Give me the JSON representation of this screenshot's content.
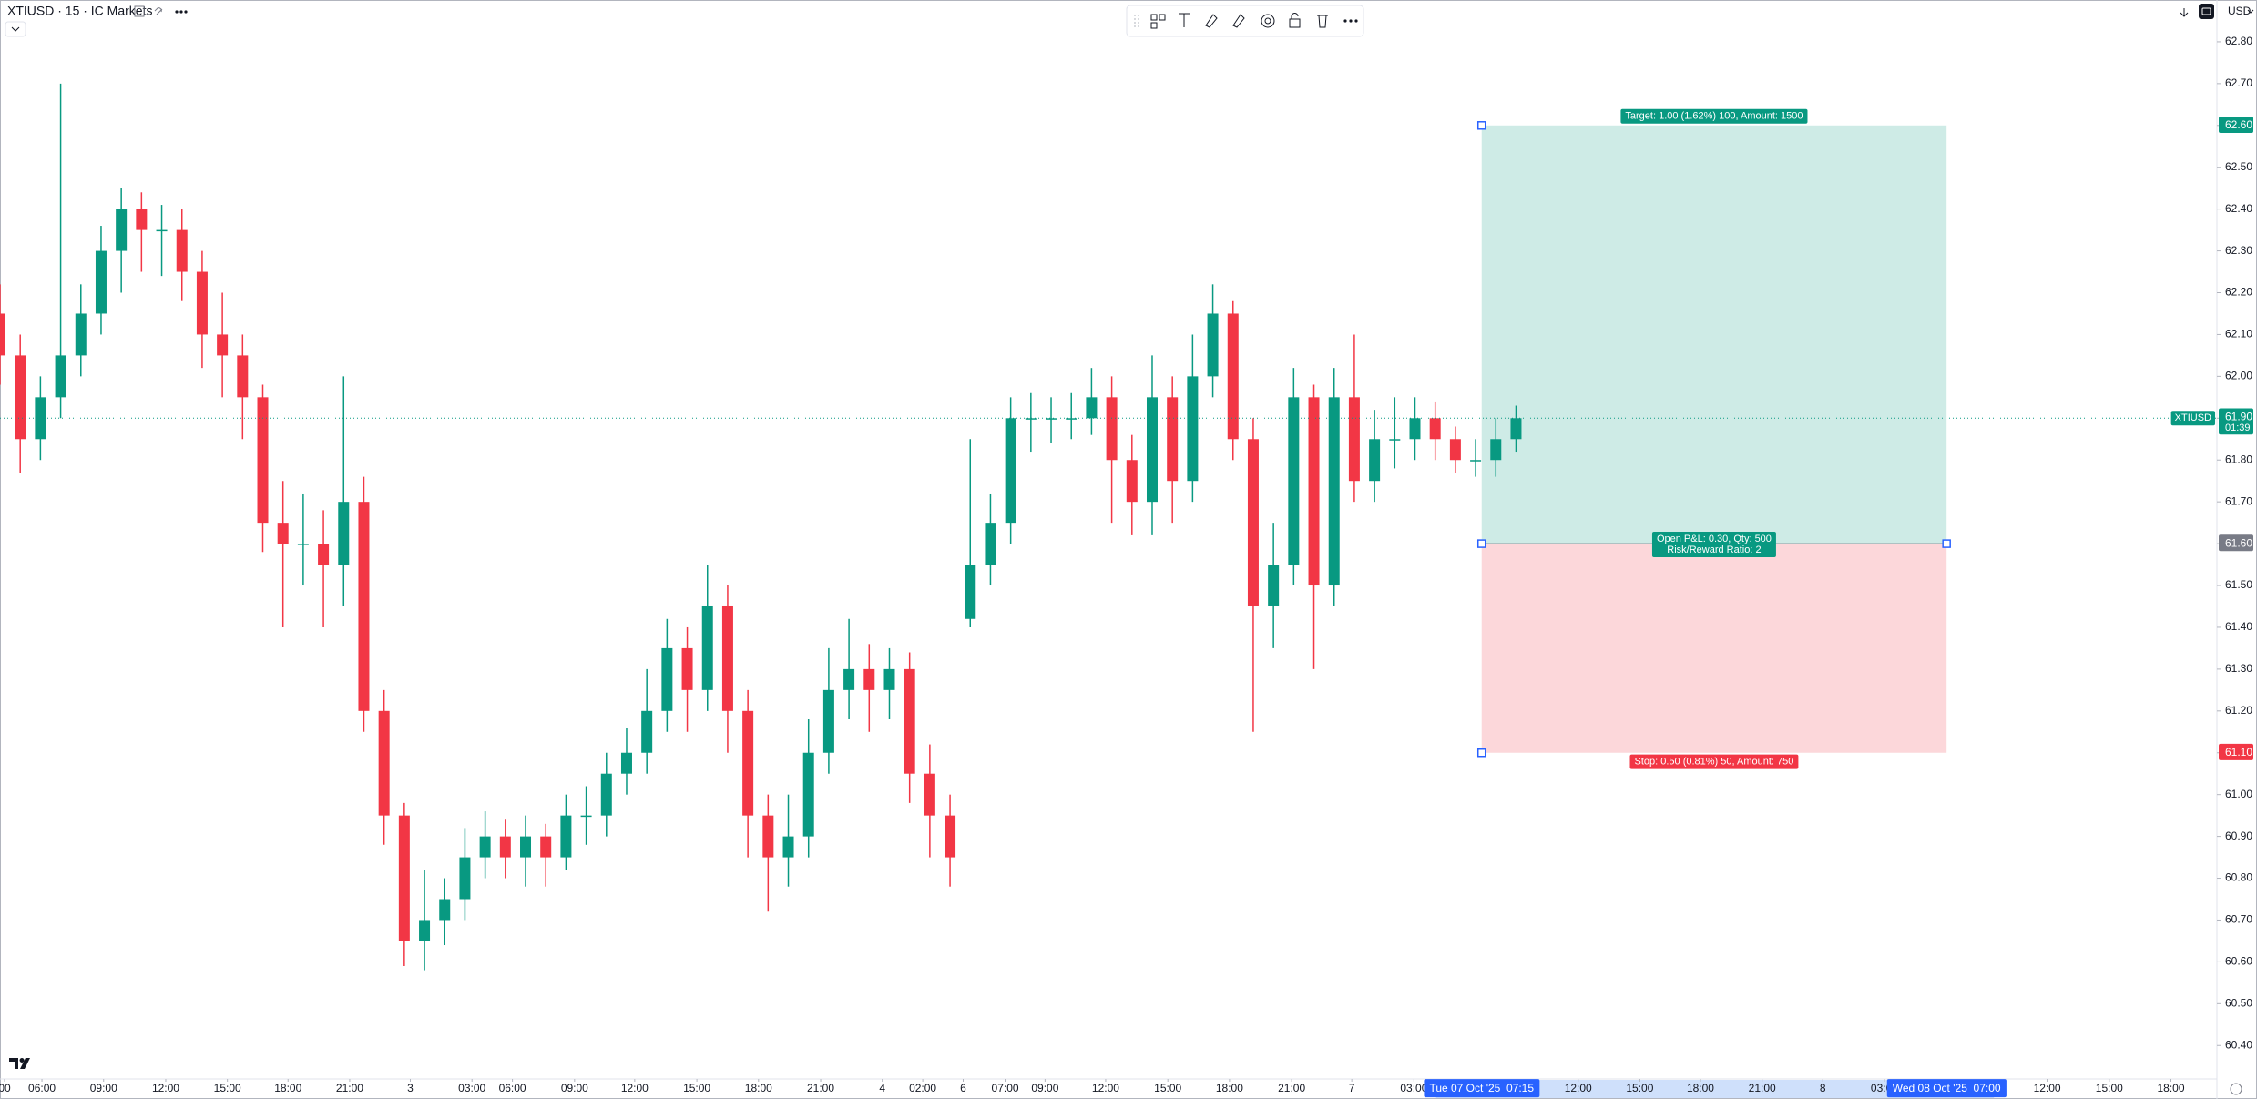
{
  "header": {
    "symbol_title": "XTIUSD · 15 · IC Markets",
    "currency": "USD"
  },
  "chart_data": {
    "type": "candlestick",
    "x": [
      0,
      4,
      8,
      12,
      16,
      20,
      24,
      28,
      32,
      36,
      40,
      44,
      48,
      52,
      56,
      60,
      64,
      68,
      72,
      76,
      80,
      84,
      88,
      92,
      96,
      100,
      104,
      108,
      112,
      116,
      120,
      124,
      128,
      132,
      136,
      140,
      144,
      148,
      152,
      156,
      160,
      164,
      168,
      172,
      176,
      180,
      184,
      188,
      192,
      196,
      200,
      204,
      208,
      212,
      216,
      220,
      224,
      228,
      232,
      236,
      240,
      244,
      248,
      252,
      256,
      260,
      264,
      268,
      272,
      276,
      280,
      284,
      288,
      292,
      296,
      300
    ],
    "open": [
      62.15,
      62.05,
      61.85,
      61.95,
      62.05,
      62.15,
      62.3,
      62.4,
      62.35,
      62.35,
      62.25,
      62.1,
      62.05,
      61.95,
      61.65,
      61.6,
      61.6,
      61.55,
      61.7,
      61.2,
      60.95,
      60.65,
      60.7,
      60.75,
      60.85,
      60.9,
      60.85,
      60.9,
      60.85,
      60.95,
      60.95,
      61.05,
      61.1,
      61.2,
      61.35,
      61.25,
      61.45,
      61.2,
      60.95,
      60.85,
      60.9,
      61.1,
      61.25,
      61.3,
      61.25,
      61.3,
      61.05,
      60.95,
      61.42,
      61.55,
      61.65,
      61.9,
      61.9,
      61.9,
      61.9,
      61.95,
      61.8,
      61.7,
      61.95,
      61.75,
      62.0,
      62.15,
      61.85,
      61.45,
      61.55,
      61.95,
      61.5,
      61.95,
      61.75,
      61.85,
      61.85,
      61.9,
      61.85,
      61.8,
      61.8,
      61.85
    ],
    "high": [
      62.22,
      62.1,
      62.0,
      62.7,
      62.22,
      62.36,
      62.45,
      62.44,
      62.41,
      62.4,
      62.3,
      62.2,
      62.1,
      61.98,
      61.75,
      61.72,
      61.68,
      62.0,
      61.76,
      61.25,
      60.98,
      60.82,
      60.8,
      60.92,
      60.96,
      60.94,
      60.95,
      60.93,
      61.0,
      61.02,
      61.1,
      61.16,
      61.3,
      61.42,
      61.4,
      61.55,
      61.5,
      61.25,
      61.0,
      61.0,
      61.18,
      61.35,
      61.42,
      61.36,
      61.35,
      61.34,
      61.12,
      61.0,
      61.85,
      61.72,
      61.95,
      61.96,
      61.95,
      61.96,
      62.02,
      62.0,
      61.86,
      62.05,
      62.0,
      62.1,
      62.22,
      62.18,
      61.9,
      61.65,
      62.02,
      61.98,
      62.02,
      62.1,
      61.92,
      61.95,
      61.95,
      61.94,
      61.88,
      61.85,
      61.9,
      61.93
    ],
    "low": [
      61.98,
      61.77,
      61.8,
      61.9,
      62.0,
      62.1,
      62.2,
      62.25,
      62.24,
      62.18,
      62.02,
      61.95,
      61.85,
      61.58,
      61.4,
      61.5,
      61.4,
      61.45,
      61.15,
      60.88,
      60.59,
      60.58,
      60.64,
      60.7,
      60.8,
      60.8,
      60.78,
      60.78,
      60.82,
      60.88,
      60.9,
      61.0,
      61.05,
      61.15,
      61.15,
      61.2,
      61.1,
      60.85,
      60.72,
      60.78,
      60.85,
      61.05,
      61.18,
      61.15,
      61.18,
      60.98,
      60.85,
      60.78,
      61.4,
      61.5,
      61.6,
      61.82,
      61.84,
      61.85,
      61.86,
      61.65,
      61.62,
      61.62,
      61.65,
      61.7,
      61.95,
      61.8,
      61.15,
      61.35,
      61.5,
      61.3,
      61.45,
      61.7,
      61.7,
      61.78,
      61.8,
      61.8,
      61.77,
      61.76,
      61.76,
      61.82
    ],
    "close": [
      62.05,
      61.85,
      61.95,
      62.05,
      62.15,
      62.3,
      62.4,
      62.35,
      62.35,
      62.25,
      62.1,
      62.05,
      61.95,
      61.65,
      61.6,
      61.6,
      61.55,
      61.7,
      61.2,
      60.95,
      60.65,
      60.7,
      60.75,
      60.85,
      60.9,
      60.85,
      60.9,
      60.85,
      60.95,
      60.95,
      61.05,
      61.1,
      61.2,
      61.35,
      61.25,
      61.45,
      61.2,
      60.95,
      60.85,
      60.9,
      61.1,
      61.25,
      61.3,
      61.25,
      61.3,
      61.05,
      60.95,
      60.85,
      61.55,
      61.65,
      61.9,
      61.9,
      61.9,
      61.9,
      61.95,
      61.8,
      61.7,
      61.95,
      61.75,
      62.0,
      62.15,
      61.85,
      61.45,
      61.55,
      61.95,
      61.5,
      61.95,
      61.75,
      61.85,
      61.85,
      61.9,
      61.85,
      61.8,
      61.8,
      61.85,
      61.9
    ],
    "up_color": "#089981",
    "down_color": "#f23645",
    "xlim": [
      0,
      438.7
    ],
    "ylim": [
      60.32,
      62.9
    ],
    "xticks": [
      {
        "value": 0.9,
        "label": "00"
      },
      {
        "value": 8.3,
        "label": "06:00"
      },
      {
        "value": 20.5,
        "label": "09:00"
      },
      {
        "value": 32.8,
        "label": "12:00"
      },
      {
        "value": 45.0,
        "label": "15:00"
      },
      {
        "value": 57.0,
        "label": "18:00"
      },
      {
        "value": 69.2,
        "label": "21:00"
      },
      {
        "value": 81.2,
        "label": "3"
      },
      {
        "value": 93.4,
        "label": "03:00"
      },
      {
        "value": 101.4,
        "label": "06:00"
      },
      {
        "value": 113.7,
        "label": "09:00"
      },
      {
        "value": 125.6,
        "label": "12:00"
      },
      {
        "value": 137.9,
        "label": "15:00"
      },
      {
        "value": 150.1,
        "label": "18:00"
      },
      {
        "value": 162.4,
        "label": "21:00"
      },
      {
        "value": 174.6,
        "label": "4"
      },
      {
        "value": 182.6,
        "label": "02:00"
      },
      {
        "value": 190.6,
        "label": "6"
      },
      {
        "value": 198.9,
        "label": "07:00"
      },
      {
        "value": 206.8,
        "label": "09:00"
      },
      {
        "value": 218.8,
        "label": "12:00"
      },
      {
        "value": 231.1,
        "label": "15:00"
      },
      {
        "value": 243.3,
        "label": "18:00"
      },
      {
        "value": 255.6,
        "label": "21:00"
      },
      {
        "value": 267.5,
        "label": "7"
      },
      {
        "value": 279.8,
        "label": "03:00"
      },
      {
        "value": 312.3,
        "label": "12:00"
      },
      {
        "value": 324.5,
        "label": "15:00"
      },
      {
        "value": 336.5,
        "label": "18:00"
      },
      {
        "value": 348.7,
        "label": "21:00"
      },
      {
        "value": 360.7,
        "label": "8"
      },
      {
        "value": 372.9,
        "label": "03:00"
      },
      {
        "value": 405.1,
        "label": "12:00"
      },
      {
        "value": 417.4,
        "label": "15:00"
      },
      {
        "value": 429.6,
        "label": "18:00"
      }
    ],
    "yticks": [
      {
        "value": 60.4,
        "label": "60.40"
      },
      {
        "value": 60.5,
        "label": "60.50"
      },
      {
        "value": 60.6,
        "label": "60.60"
      },
      {
        "value": 60.7,
        "label": "60.70"
      },
      {
        "value": 60.8,
        "label": "60.80"
      },
      {
        "value": 60.9,
        "label": "60.90"
      },
      {
        "value": 61.0,
        "label": "61.00"
      },
      {
        "value": 61.1,
        "label": "61.10"
      },
      {
        "value": 61.2,
        "label": "61.20"
      },
      {
        "value": 61.3,
        "label": "61.30"
      },
      {
        "value": 61.4,
        "label": "61.40"
      },
      {
        "value": 61.5,
        "label": "61.50"
      },
      {
        "value": 61.6,
        "label": "61.60"
      },
      {
        "value": 61.7,
        "label": "61.70"
      },
      {
        "value": 61.8,
        "label": "61.80"
      },
      {
        "value": 61.9,
        "label": "61.90"
      },
      {
        "value": 62.0,
        "label": "62.00"
      },
      {
        "value": 62.1,
        "label": "62.10"
      },
      {
        "value": 62.2,
        "label": "62.20"
      },
      {
        "value": 62.3,
        "label": "62.30"
      },
      {
        "value": 62.4,
        "label": "62.40"
      },
      {
        "value": 62.5,
        "label": "62.50"
      },
      {
        "value": 62.6,
        "label": "62.60"
      },
      {
        "value": 62.7,
        "label": "62.70"
      },
      {
        "value": 62.8,
        "label": "62.80"
      }
    ],
    "last_price": {
      "value": 61.9,
      "label": "61.90",
      "countdown": "01:39",
      "symbol": "XTIUSD"
    },
    "crosshair_labels": [
      {
        "value": 293.2,
        "label": "Tue 07 Oct '25  07:15"
      },
      {
        "value": 385.2,
        "label": "Wed 08 Oct '25  07:00"
      }
    ],
    "position": {
      "x_start": 293.2,
      "x_end": 385.2,
      "entry": {
        "value": 61.6,
        "label": "61.60"
      },
      "target": {
        "value": 62.6,
        "label": "62.60"
      },
      "stop": {
        "value": 61.1,
        "label": "61.10"
      },
      "target_text": "Target: 1.00 (1.62%) 100, Amount: 1500",
      "open_pl_text": "Open P&L: 0.30, Qty: 500",
      "rr_text": "Risk/Reward Ratio: 2",
      "stop_text": "Stop: 0.50 (0.81%) 50, Amount: 750",
      "profit_color": "#089981",
      "loss_color": "#f23645",
      "entry_color": "#787b86"
    }
  }
}
